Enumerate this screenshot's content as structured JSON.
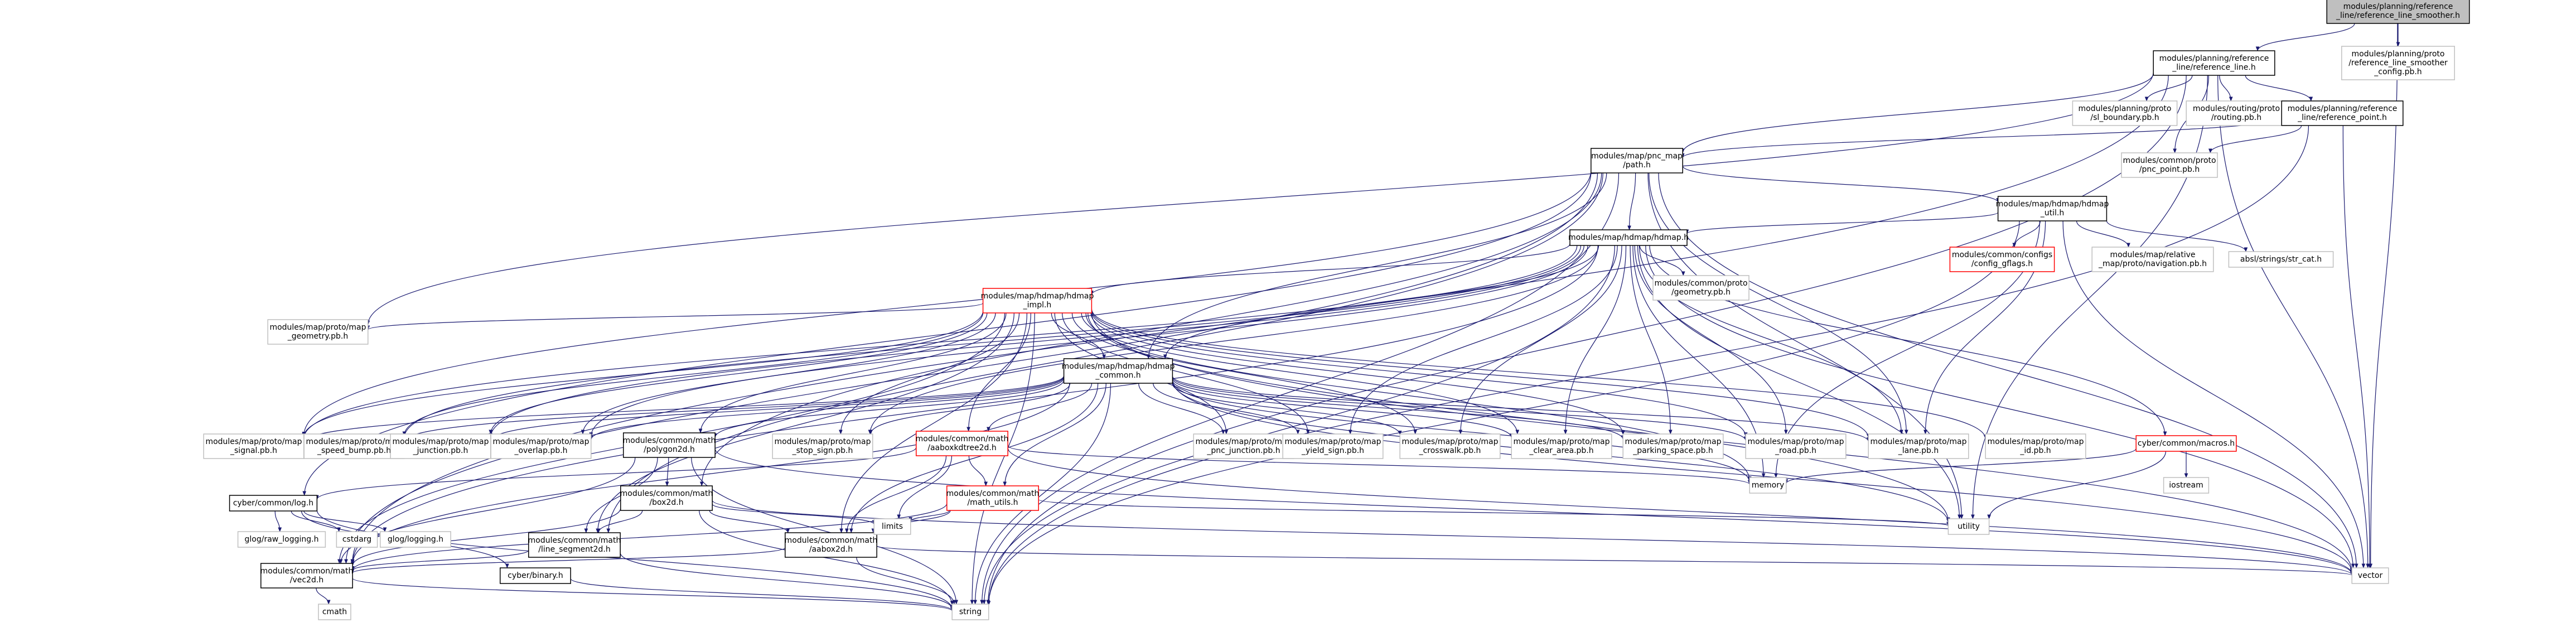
{
  "graph": {
    "title": "modules/planning/reference_line/reference_line_smoother.h",
    "colors": {
      "edge": "#191970",
      "node_border": "#000000",
      "external_border": "#bfbfbf",
      "incomplete_border": "#ff0000",
      "root_fill": "#bfbfbf"
    },
    "nodes": [
      {
        "id": "root",
        "lines": [
          "modules/planning/reference",
          "_line/reference_line_smoother.h"
        ],
        "kind": "root"
      },
      {
        "id": "rl",
        "lines": [
          "modules/planning/reference",
          "_line/reference_line.h"
        ],
        "kind": "normal"
      },
      {
        "id": "rlsc",
        "lines": [
          "modules/planning/proto",
          "/reference_line_smoother",
          "_config.pb.h"
        ],
        "kind": "external"
      },
      {
        "id": "slb",
        "lines": [
          "modules/planning/proto",
          "/sl_boundary.pb.h"
        ],
        "kind": "external"
      },
      {
        "id": "routingpb",
        "lines": [
          "modules/routing/proto",
          "/routing.pb.h"
        ],
        "kind": "external"
      },
      {
        "id": "rlp",
        "lines": [
          "modules/planning/reference",
          "_line/reference_point.h"
        ],
        "kind": "normal"
      },
      {
        "id": "pncpath",
        "lines": [
          "modules/map/pnc_map",
          "/path.h"
        ],
        "kind": "normal"
      },
      {
        "id": "pncpoint",
        "lines": [
          "modules/common/proto",
          "/pnc_point.pb.h"
        ],
        "kind": "external"
      },
      {
        "id": "hdmaputil",
        "lines": [
          "modules/map/hdmap/hdmap",
          "_util.h"
        ],
        "kind": "normal"
      },
      {
        "id": "hdmap",
        "lines": [
          "modules/map/hdmap/hdmap.h"
        ],
        "kind": "normal"
      },
      {
        "id": "gflags",
        "lines": [
          "modules/common/configs",
          "/config_gflags.h"
        ],
        "kind": "incomplete"
      },
      {
        "id": "relnav",
        "lines": [
          "modules/map/relative",
          "_map/proto/navigation.pb.h"
        ],
        "kind": "external"
      },
      {
        "id": "strcat",
        "lines": [
          "absl/strings/str_cat.h"
        ],
        "kind": "external"
      },
      {
        "id": "impl",
        "lines": [
          "modules/map/hdmap/hdmap",
          "_impl.h"
        ],
        "kind": "incomplete"
      },
      {
        "id": "geompb",
        "lines": [
          "modules/common/proto",
          "/geometry.pb.h"
        ],
        "kind": "external"
      },
      {
        "id": "mapgeom",
        "lines": [
          "modules/map/proto/map",
          "_geometry.pb.h"
        ],
        "kind": "external"
      },
      {
        "id": "common",
        "lines": [
          "modules/map/hdmap/hdmap",
          "_common.h"
        ],
        "kind": "normal"
      },
      {
        "id": "signal",
        "lines": [
          "modules/map/proto/map",
          "_signal.pb.h"
        ],
        "kind": "external"
      },
      {
        "id": "speedbump",
        "lines": [
          "modules/map/proto/map",
          "_speed_bump.pb.h"
        ],
        "kind": "external"
      },
      {
        "id": "junction",
        "lines": [
          "modules/map/proto/map",
          "_junction.pb.h"
        ],
        "kind": "external"
      },
      {
        "id": "overlap",
        "lines": [
          "modules/map/proto/map",
          "_overlap.pb.h"
        ],
        "kind": "external"
      },
      {
        "id": "polygon2d",
        "lines": [
          "modules/common/math",
          "/polygon2d.h"
        ],
        "kind": "normal"
      },
      {
        "id": "stopsign",
        "lines": [
          "modules/map/proto/map",
          "_stop_sign.pb.h"
        ],
        "kind": "external"
      },
      {
        "id": "aaboxkd",
        "lines": [
          "modules/common/math",
          "/aaboxkdtree2d.h"
        ],
        "kind": "incomplete"
      },
      {
        "id": "pncjunc",
        "lines": [
          "modules/map/proto/map",
          "_pnc_junction.pb.h"
        ],
        "kind": "external"
      },
      {
        "id": "yield",
        "lines": [
          "modules/map/proto/map",
          "_yield_sign.pb.h"
        ],
        "kind": "external"
      },
      {
        "id": "crosswalk",
        "lines": [
          "modules/map/proto/map",
          "_crosswalk.pb.h"
        ],
        "kind": "external"
      },
      {
        "id": "cleararea",
        "lines": [
          "modules/map/proto/map",
          "_clear_area.pb.h"
        ],
        "kind": "external"
      },
      {
        "id": "parking",
        "lines": [
          "modules/map/proto/map",
          "_parking_space.pb.h"
        ],
        "kind": "external"
      },
      {
        "id": "road",
        "lines": [
          "modules/map/proto/map",
          "_road.pb.h"
        ],
        "kind": "external"
      },
      {
        "id": "lane",
        "lines": [
          "modules/map/proto/map",
          "_lane.pb.h"
        ],
        "kind": "external"
      },
      {
        "id": "idpb",
        "lines": [
          "modules/map/proto/map",
          "_id.pb.h"
        ],
        "kind": "external"
      },
      {
        "id": "cyberros",
        "lines": [
          "cyber/common/macros.h"
        ],
        "kind": "incomplete"
      },
      {
        "id": "iostream",
        "lines": [
          "iostream"
        ],
        "kind": "external"
      },
      {
        "id": "memory",
        "lines": [
          "memory"
        ],
        "kind": "external"
      },
      {
        "id": "mathutils",
        "lines": [
          "modules/common/math",
          "/math_utils.h"
        ],
        "kind": "incomplete"
      },
      {
        "id": "box2d",
        "lines": [
          "modules/common/math",
          "/box2d.h"
        ],
        "kind": "normal"
      },
      {
        "id": "cyberlog",
        "lines": [
          "cyber/common/log.h"
        ],
        "kind": "normal"
      },
      {
        "id": "glograw",
        "lines": [
          "glog/raw_logging.h"
        ],
        "kind": "external"
      },
      {
        "id": "cstdarg",
        "lines": [
          "cstdarg"
        ],
        "kind": "external"
      },
      {
        "id": "gloglog",
        "lines": [
          "glog/logging.h"
        ],
        "kind": "external"
      },
      {
        "id": "lineseg",
        "lines": [
          "modules/common/math",
          "/line_segment2d.h"
        ],
        "kind": "normal"
      },
      {
        "id": "aabox",
        "lines": [
          "modules/common/math",
          "/aabox2d.h"
        ],
        "kind": "normal"
      },
      {
        "id": "limits",
        "lines": [
          "limits"
        ],
        "kind": "external"
      },
      {
        "id": "utility",
        "lines": [
          "utility"
        ],
        "kind": "external"
      },
      {
        "id": "binary",
        "lines": [
          "cyber/binary.h"
        ],
        "kind": "normal"
      },
      {
        "id": "vec2d",
        "lines": [
          "modules/common/math",
          "/vec2d.h"
        ],
        "kind": "normal"
      },
      {
        "id": "cmath",
        "lines": [
          "cmath"
        ],
        "kind": "external"
      },
      {
        "id": "string",
        "lines": [
          "string"
        ],
        "kind": "external"
      },
      {
        "id": "vector",
        "lines": [
          "vector"
        ],
        "kind": "external"
      }
    ],
    "edges": [
      [
        "root",
        "rl"
      ],
      [
        "root",
        "rlsc"
      ],
      [
        "root",
        "vector"
      ],
      [
        "rl",
        "slb"
      ],
      [
        "rl",
        "routingpb"
      ],
      [
        "rl",
        "rlp"
      ],
      [
        "rl",
        "pncpath"
      ],
      [
        "rl",
        "pncpoint"
      ],
      [
        "rl",
        "utility"
      ],
      [
        "rl",
        "vector"
      ],
      [
        "rl",
        "string"
      ],
      [
        "rl",
        "mapgeom"
      ],
      [
        "rl",
        "vec2d"
      ],
      [
        "rlp",
        "pncpath"
      ],
      [
        "rlp",
        "pncpoint"
      ],
      [
        "rlp",
        "string"
      ],
      [
        "rlp",
        "vector"
      ],
      [
        "pncpath",
        "hdmaputil"
      ],
      [
        "pncpath",
        "hdmap"
      ],
      [
        "pncpath",
        "common"
      ],
      [
        "pncpath",
        "lane"
      ],
      [
        "pncpath",
        "utility"
      ],
      [
        "pncpath",
        "string"
      ],
      [
        "pncpath",
        "vector"
      ],
      [
        "pncpath",
        "cyberlog"
      ],
      [
        "pncpath",
        "box2d"
      ],
      [
        "pncpath",
        "lineseg"
      ],
      [
        "pncpath",
        "vec2d"
      ],
      [
        "pncpath",
        "signal"
      ],
      [
        "hdmaputil",
        "hdmap"
      ],
      [
        "hdmaputil",
        "gflags"
      ],
      [
        "hdmaputil",
        "relnav"
      ],
      [
        "hdmaputil",
        "strcat"
      ],
      [
        "hdmaputil",
        "memory"
      ],
      [
        "hdmaputil",
        "lane"
      ],
      [
        "hdmaputil",
        "string"
      ],
      [
        "hdmaputil",
        "vector"
      ],
      [
        "hdmap",
        "impl"
      ],
      [
        "hdmap",
        "geompb"
      ],
      [
        "hdmap",
        "common"
      ],
      [
        "hdmap",
        "signal"
      ],
      [
        "hdmap",
        "speedbump"
      ],
      [
        "hdmap",
        "junction"
      ],
      [
        "hdmap",
        "overlap"
      ],
      [
        "hdmap",
        "stopsign"
      ],
      [
        "hdmap",
        "yield"
      ],
      [
        "hdmap",
        "crosswalk"
      ],
      [
        "hdmap",
        "cleararea"
      ],
      [
        "hdmap",
        "parking"
      ],
      [
        "hdmap",
        "road"
      ],
      [
        "hdmap",
        "lane"
      ],
      [
        "hdmap",
        "cyberros"
      ],
      [
        "hdmap",
        "memory"
      ],
      [
        "hdmap",
        "utility"
      ],
      [
        "hdmap",
        "string"
      ],
      [
        "hdmap",
        "vector"
      ],
      [
        "hdmap",
        "vec2d"
      ],
      [
        "impl",
        "mapgeom"
      ],
      [
        "impl",
        "common"
      ],
      [
        "impl",
        "signal"
      ],
      [
        "impl",
        "speedbump"
      ],
      [
        "impl",
        "junction"
      ],
      [
        "impl",
        "overlap"
      ],
      [
        "impl",
        "polygon2d"
      ],
      [
        "impl",
        "stopsign"
      ],
      [
        "impl",
        "aaboxkd"
      ],
      [
        "impl",
        "pncjunc"
      ],
      [
        "impl",
        "yield"
      ],
      [
        "impl",
        "crosswalk"
      ],
      [
        "impl",
        "cleararea"
      ],
      [
        "impl",
        "parking"
      ],
      [
        "impl",
        "road"
      ],
      [
        "impl",
        "lane"
      ],
      [
        "impl",
        "idpb"
      ],
      [
        "impl",
        "memory"
      ],
      [
        "impl",
        "string"
      ],
      [
        "impl",
        "vector"
      ],
      [
        "impl",
        "aabox"
      ],
      [
        "impl",
        "lineseg"
      ],
      [
        "impl",
        "vec2d"
      ],
      [
        "impl",
        "utility"
      ],
      [
        "common",
        "signal"
      ],
      [
        "common",
        "speedbump"
      ],
      [
        "common",
        "junction"
      ],
      [
        "common",
        "overlap"
      ],
      [
        "common",
        "polygon2d"
      ],
      [
        "common",
        "stopsign"
      ],
      [
        "common",
        "aaboxkd"
      ],
      [
        "common",
        "pncjunc"
      ],
      [
        "common",
        "yield"
      ],
      [
        "common",
        "crosswalk"
      ],
      [
        "common",
        "cleararea"
      ],
      [
        "common",
        "parking"
      ],
      [
        "common",
        "road"
      ],
      [
        "common",
        "lane"
      ],
      [
        "common",
        "memory"
      ],
      [
        "common",
        "mathutils"
      ],
      [
        "common",
        "string"
      ],
      [
        "common",
        "vector"
      ],
      [
        "common",
        "utility"
      ],
      [
        "common",
        "aabox"
      ],
      [
        "common",
        "vec2d"
      ],
      [
        "cyberros",
        "iostream"
      ],
      [
        "cyberros",
        "memory"
      ],
      [
        "cyberros",
        "utility"
      ],
      [
        "polygon2d",
        "box2d"
      ],
      [
        "polygon2d",
        "lineseg"
      ],
      [
        "polygon2d",
        "vec2d"
      ],
      [
        "polygon2d",
        "string"
      ],
      [
        "polygon2d",
        "vector"
      ],
      [
        "aaboxkd",
        "mathutils"
      ],
      [
        "aaboxkd",
        "cyberlog"
      ],
      [
        "aaboxkd",
        "aabox"
      ],
      [
        "aaboxkd",
        "limits"
      ],
      [
        "aaboxkd",
        "memory"
      ],
      [
        "aaboxkd",
        "vector"
      ],
      [
        "mathutils",
        "limits"
      ],
      [
        "mathutils",
        "utility"
      ],
      [
        "mathutils",
        "vec2d"
      ],
      [
        "mathutils",
        "aabox"
      ],
      [
        "box2d",
        "aabox"
      ],
      [
        "box2d",
        "lineseg"
      ],
      [
        "box2d",
        "limits"
      ],
      [
        "box2d",
        "string"
      ],
      [
        "box2d",
        "vector"
      ],
      [
        "box2d",
        "vec2d"
      ],
      [
        "cyberlog",
        "glograw"
      ],
      [
        "cyberlog",
        "cstdarg"
      ],
      [
        "cyberlog",
        "gloglog"
      ],
      [
        "cyberlog",
        "binary"
      ],
      [
        "cyberlog",
        "string"
      ],
      [
        "lineseg",
        "vec2d"
      ],
      [
        "lineseg",
        "string"
      ],
      [
        "aabox",
        "vec2d"
      ],
      [
        "aabox",
        "string"
      ],
      [
        "aabox",
        "vector"
      ],
      [
        "binary",
        "string"
      ],
      [
        "vec2d",
        "cmath"
      ],
      [
        "vec2d",
        "string"
      ]
    ]
  }
}
